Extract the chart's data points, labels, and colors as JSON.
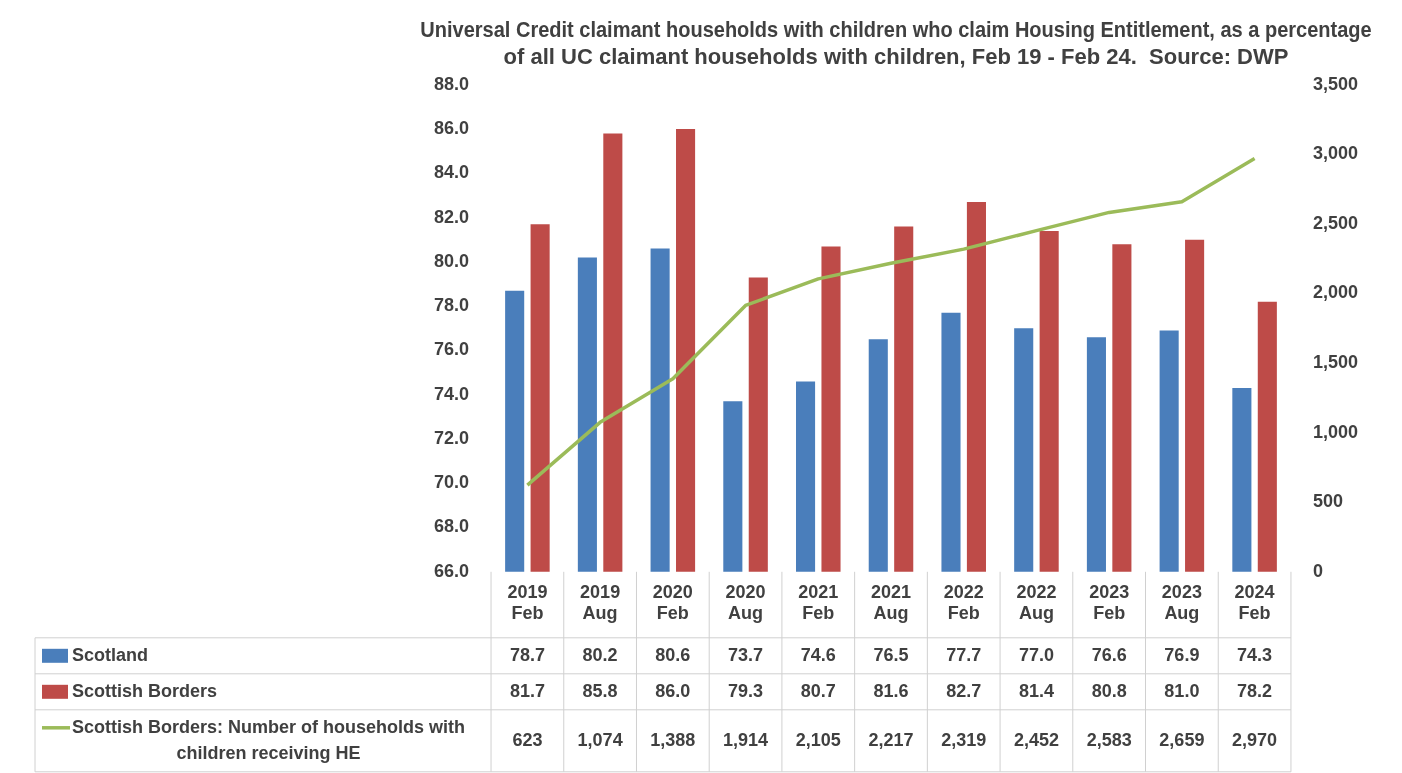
{
  "chart_data": {
    "type": "bar",
    "title": "Universal Credit claimant households with children who claim Housing Entitlement, as a percentage of all UC claimant households with children, Feb 19 - Feb 24.  Source: DWP",
    "categories": [
      "2019 Feb",
      "2019 Aug",
      "2020 Feb",
      "2020 Aug",
      "2021 Feb",
      "2021 Aug",
      "2022 Feb",
      "2022 Aug",
      "2023 Feb",
      "2023 Aug",
      "2024 Feb"
    ],
    "series": [
      {
        "name": "Scotland",
        "color": "#4a7ebb",
        "values": [
          78.7,
          80.2,
          80.6,
          73.7,
          74.6,
          76.5,
          77.7,
          77.0,
          76.6,
          76.9,
          74.3
        ],
        "value_labels": [
          "78.7",
          "80.2",
          "80.6",
          "73.7",
          "74.6",
          "76.5",
          "77.7",
          "77.0",
          "76.6",
          "76.9",
          "74.3"
        ]
      },
      {
        "name": "Scottish Borders",
        "color": "#be4b48",
        "values": [
          81.7,
          85.8,
          86.0,
          79.3,
          80.7,
          81.6,
          82.7,
          81.4,
          80.8,
          81.0,
          78.2
        ],
        "value_labels": [
          "81.7",
          "85.8",
          "86.0",
          "79.3",
          "80.7",
          "81.6",
          "82.7",
          "81.4",
          "80.8",
          "81.0",
          "78.2"
        ]
      },
      {
        "name": "Scottish Borders: Number of households with children receiving HE",
        "type": "line",
        "axis": "y2",
        "color": "#9bbb59",
        "values": [
          623,
          1074,
          1388,
          1914,
          2105,
          2217,
          2319,
          2452,
          2583,
          2659,
          2970
        ],
        "value_labels": [
          "623",
          "1,074",
          "1,388",
          "1,914",
          "2,105",
          "2,217",
          "2,319",
          "2,452",
          "2,583",
          "2,659",
          "2,970"
        ]
      }
    ],
    "ylim": [
      66,
      88
    ],
    "yticks": [
      {
        "value": 66,
        "label": "66.0"
      },
      {
        "value": 68,
        "label": "68.0"
      },
      {
        "value": 70,
        "label": "70.0"
      },
      {
        "value": 72,
        "label": "72.0"
      },
      {
        "value": 74,
        "label": "74.0"
      },
      {
        "value": 76,
        "label": "76.0"
      },
      {
        "value": 78,
        "label": "78.0"
      },
      {
        "value": 80,
        "label": "80.0"
      },
      {
        "value": 82,
        "label": "82.0"
      },
      {
        "value": 84,
        "label": "84.0"
      },
      {
        "value": 86,
        "label": "86.0"
      },
      {
        "value": 88,
        "label": "88.0"
      }
    ],
    "y2lim": [
      0,
      3500
    ],
    "y2ticks": [
      0,
      500,
      {
        "value": 1000,
        "label": "1,000"
      },
      {
        "value": 1500,
        "label": "1,500"
      },
      {
        "value": 2000,
        "label": "2,000"
      },
      {
        "value": 2500,
        "label": "2,500"
      },
      {
        "value": 3000,
        "label": "3,000"
      },
      {
        "value": 3500,
        "label": "3,500"
      }
    ],
    "grid": false,
    "legend": "bottom",
    "marker": "none"
  }
}
